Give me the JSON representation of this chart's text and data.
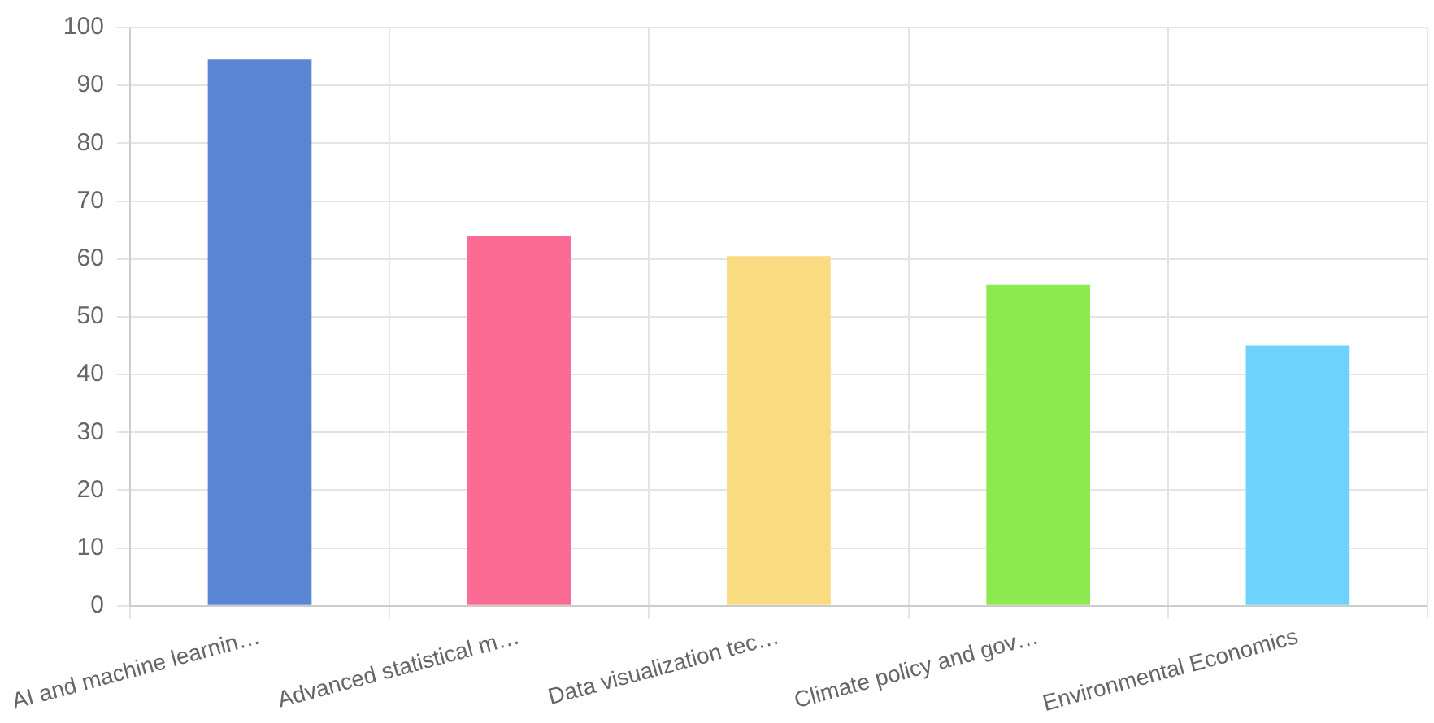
{
  "chart_data": {
    "type": "bar",
    "categories": [
      "AI and machine learnin…",
      "Advanced statistical m…",
      "Data visualization tec…",
      "Climate policy and gov…",
      "Environmental Economics"
    ],
    "values": [
      94.5,
      64,
      60.5,
      55.5,
      45
    ],
    "colors": [
      "#5a85d3",
      "#fb6b94",
      "#f9db81",
      "#8ce94f",
      "#6dd3fc"
    ],
    "ylim": [
      0,
      100
    ],
    "yticks": [
      0,
      10,
      20,
      30,
      40,
      50,
      60,
      70,
      80,
      90,
      100
    ],
    "grid": true,
    "legend": false
  }
}
